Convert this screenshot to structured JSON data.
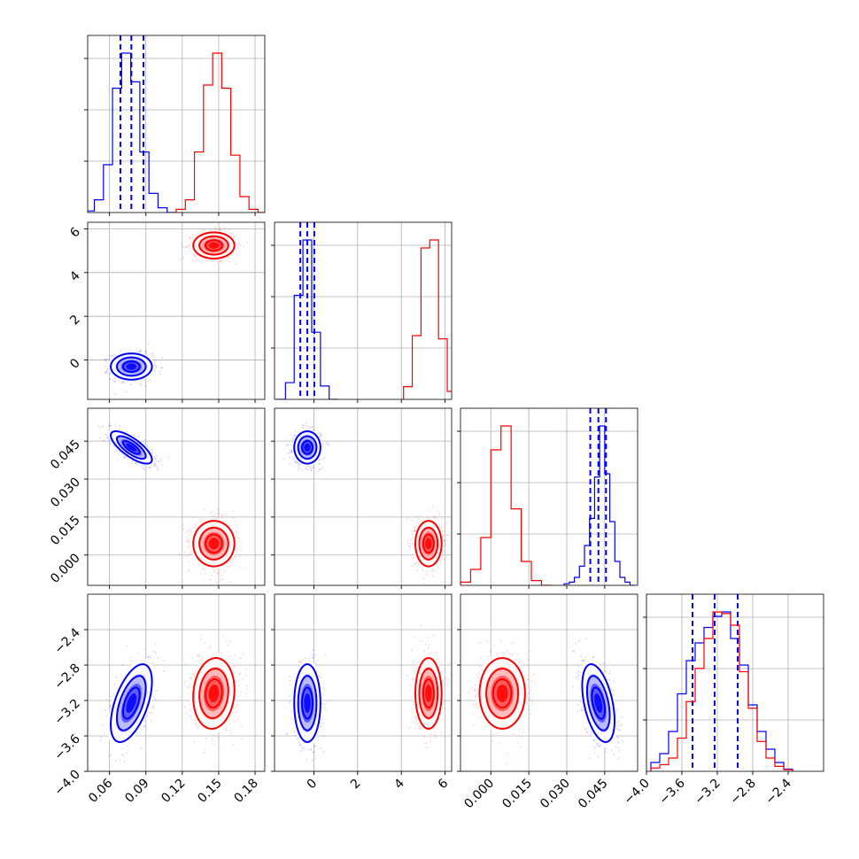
{
  "chart_data": {
    "type": "corner",
    "title": "",
    "grid": true,
    "colors": {
      "series_a": "#0000ff",
      "series_b": "#ff0000"
    },
    "parameters": [
      {
        "range": [
          0.042,
          0.188
        ],
        "ticks": [
          {
            "value": 0.06,
            "label": "0.06"
          },
          {
            "value": 0.09,
            "label": "0.09"
          },
          {
            "value": 0.12,
            "label": "0.12"
          },
          {
            "value": 0.15,
            "label": "0.15"
          },
          {
            "value": 0.18,
            "label": "0.18"
          }
        ]
      },
      {
        "range": [
          -1.8,
          6.3
        ],
        "ticks": [
          {
            "value": 0,
            "label": "0"
          },
          {
            "value": 2,
            "label": "2"
          },
          {
            "value": 4,
            "label": "4"
          },
          {
            "value": 6,
            "label": "6"
          }
        ]
      },
      {
        "range": [
          -0.012,
          0.058
        ],
        "ticks": [
          {
            "value": 0.0,
            "label": "0.000"
          },
          {
            "value": 0.015,
            "label": "0.015"
          },
          {
            "value": 0.03,
            "label": "0.030"
          },
          {
            "value": 0.045,
            "label": "0.045"
          }
        ]
      },
      {
        "range": [
          -4.0,
          -2.0
        ],
        "ticks": [
          {
            "value": -4.0,
            "label": "−4.0"
          },
          {
            "value": -3.6,
            "label": "−3.6"
          },
          {
            "value": -3.2,
            "label": "−3.2"
          },
          {
            "value": -2.8,
            "label": "−2.8"
          },
          {
            "value": -2.4,
            "label": "−2.4"
          }
        ]
      }
    ],
    "series": [
      {
        "color": "#0000ff",
        "quantiles": [
          [
            0.069,
            0.078,
            0.088
          ],
          [
            -0.62,
            -0.3,
            0.02
          ],
          [
            0.0393,
            0.0425,
            0.0455
          ],
          [
            -3.48,
            -3.23,
            -2.97
          ]
        ],
        "samples": [
          [
            0.078,
            0.0085
          ],
          [
            -0.3,
            0.3
          ],
          [
            0.0425,
            0.0032
          ],
          [
            -3.23,
            0.22
          ]
        ],
        "correlation": {
          "0-2": -0.75,
          "0-3": 0.55,
          "1-2": 0.0,
          "1-3": 0.0,
          "2-3": -0.45
        },
        "histograms": [
          {
            "edges": [
              0.04,
              0.0475,
              0.055,
              0.0625,
              0.07,
              0.0775,
              0.085,
              0.0925,
              0.1,
              0.1075,
              0.115
            ],
            "counts": [
              1,
              8,
              30,
              78,
              100,
              82,
              38,
              12,
              3,
              0
            ]
          },
          {
            "edges": [
              -1.7,
              -1.3,
              -0.9,
              -0.5,
              -0.1,
              0.3,
              0.7,
              1.1
            ],
            "counts": [
              0,
              10,
              62,
              95,
              40,
              8,
              0
            ]
          },
          {
            "edges": [
              0.029,
              0.031,
              0.033,
              0.035,
              0.037,
              0.039,
              0.041,
              0.043,
              0.045,
              0.047,
              0.049,
              0.051,
              0.053,
              0.055,
              0.057
            ],
            "counts": [
              1,
              2,
              5,
              12,
              25,
              42,
              68,
              100,
              70,
              40,
              15,
              5,
              2,
              0
            ]
          },
          {
            "edges": [
              -3.95,
              -3.85,
              -3.75,
              -3.65,
              -3.55,
              -3.45,
              -3.35,
              -3.25,
              -3.15,
              -3.05,
              -2.95,
              -2.85,
              -2.75,
              -2.65,
              -2.55,
              -2.45,
              -2.35
            ],
            "counts": [
              4,
              8,
              18,
              35,
              50,
              58,
              65,
              70,
              72,
              60,
              48,
              30,
              18,
              10,
              4,
              1
            ]
          }
        ]
      },
      {
        "color": "#ff0000",
        "quantiles": null,
        "samples": [
          [
            0.146,
            0.0085
          ],
          [
            5.24,
            0.3
          ],
          [
            0.0045,
            0.0045
          ],
          [
            -3.12,
            0.2
          ]
        ],
        "correlation": {
          "0-2": 0.0,
          "0-3": 0.1,
          "1-2": 0.0,
          "1-3": 0.0,
          "2-3": 0.0
        },
        "histograms": [
          {
            "edges": [
              0.115,
              0.1225,
              0.13,
              0.1375,
              0.145,
              0.1525,
              0.16,
              0.1675,
              0.175,
              0.1825,
              0.19
            ],
            "counts": [
              2,
              8,
              38,
              80,
              100,
              78,
              36,
              10,
              2,
              0
            ]
          },
          {
            "edges": [
              4.1,
              4.5,
              4.9,
              5.3,
              5.7,
              6.1,
              6.5
            ],
            "counts": [
              8,
              40,
              95,
              100,
              38,
              5
            ]
          },
          {
            "edges": [
              -0.012,
              -0.008,
              -0.004,
              0.0,
              0.004,
              0.008,
              0.012,
              0.016,
              0.02,
              0.024
            ],
            "counts": [
              2,
              10,
              30,
              85,
              100,
              48,
              15,
              3,
              0
            ]
          },
          {
            "edges": [
              -3.95,
              -3.85,
              -3.75,
              -3.65,
              -3.55,
              -3.45,
              -3.35,
              -3.25,
              -3.15,
              -3.05,
              -2.95,
              -2.85,
              -2.75,
              -2.65,
              -2.55,
              -2.45,
              -2.35
            ],
            "counts": [
              2,
              4,
              8,
              20,
              42,
              62,
              80,
              96,
              95,
              88,
              60,
              38,
              18,
              8,
              3,
              1
            ]
          }
        ]
      }
    ]
  }
}
